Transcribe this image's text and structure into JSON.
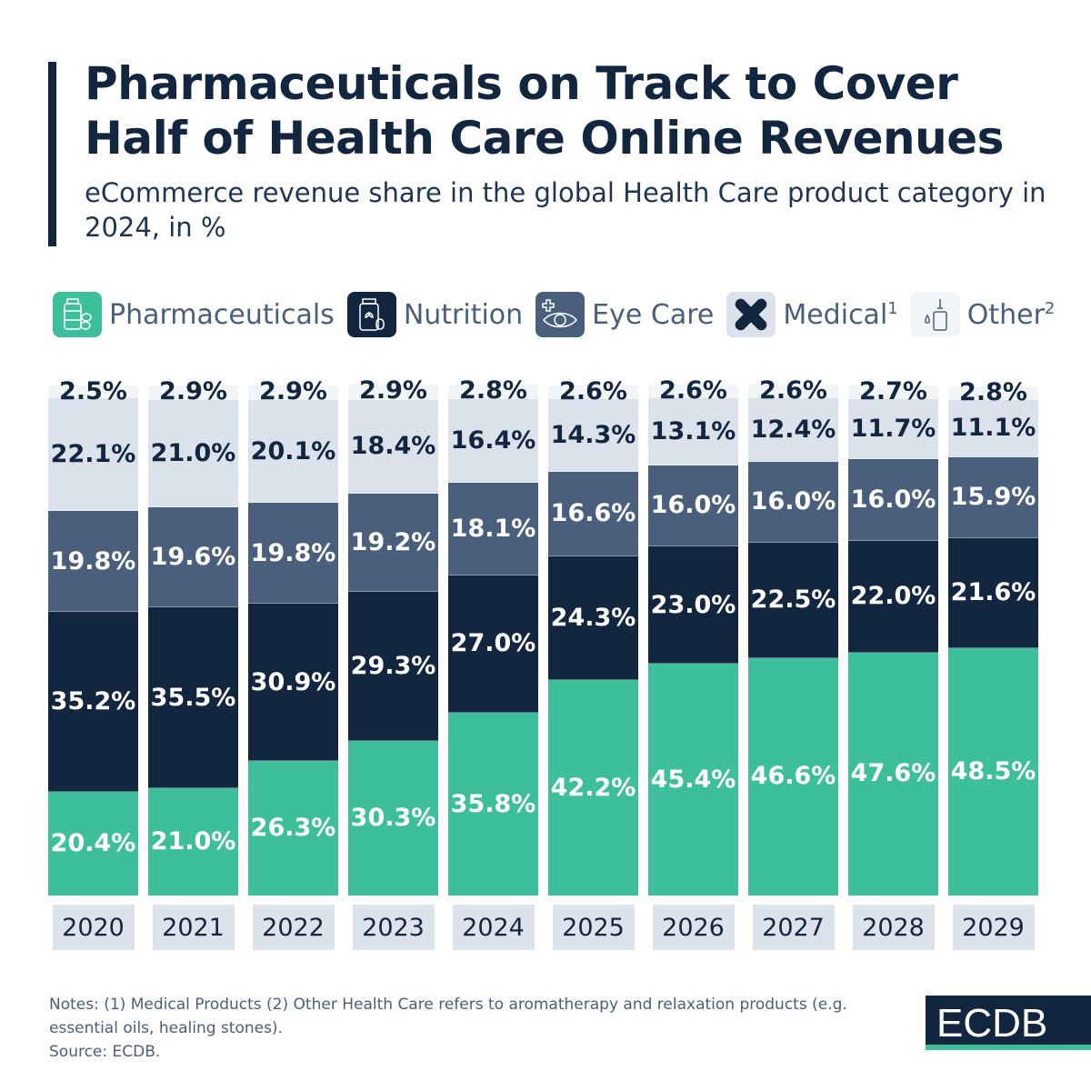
{
  "header": {
    "title": "Pharmaceuticals on Track to Cover Half of Health Care Online Revenues",
    "subtitle": "eCommerce revenue share in the global Health Care product category in 2024, in %"
  },
  "legend": [
    {
      "label": "Pharmaceuticals",
      "sup": "",
      "icon": "pill-bottle-icon",
      "color": "#3dbf9b"
    },
    {
      "label": "Nutrition",
      "sup": "",
      "icon": "supplement-jar-icon",
      "color": "#13263f"
    },
    {
      "label": "Eye Care",
      "sup": "",
      "icon": "eye-icon",
      "color": "#4a5f7c"
    },
    {
      "label": "Medical",
      "sup": "1",
      "icon": "bandage-icon",
      "color": "#dbe2eb"
    },
    {
      "label": "Other",
      "sup": "2",
      "icon": "dropper-bottle-icon",
      "color": "#f2f5f8"
    }
  ],
  "chart_data": {
    "type": "bar",
    "stacked": true,
    "categories": [
      "2020",
      "2021",
      "2022",
      "2023",
      "2024",
      "2025",
      "2026",
      "2027",
      "2028",
      "2029"
    ],
    "series": [
      {
        "name": "Pharmaceuticals",
        "color": "#3dbf9b",
        "text_color": "#ffffff",
        "values": [
          20.4,
          21.0,
          26.3,
          30.3,
          35.8,
          42.2,
          45.4,
          46.6,
          47.6,
          48.5
        ]
      },
      {
        "name": "Nutrition",
        "color": "#13263f",
        "text_color": "#ffffff",
        "values": [
          35.2,
          35.5,
          30.9,
          29.3,
          27.0,
          24.3,
          23.0,
          22.5,
          22.0,
          21.6
        ]
      },
      {
        "name": "Eye Care",
        "color": "#4a5f7c",
        "text_color": "#ffffff",
        "values": [
          19.8,
          19.6,
          19.8,
          19.2,
          18.1,
          16.6,
          16.0,
          16.0,
          16.0,
          15.9
        ]
      },
      {
        "name": "Medical",
        "color": "#dbe2eb",
        "text_color": "#13263f",
        "values": [
          22.1,
          21.0,
          20.1,
          18.4,
          16.4,
          14.3,
          13.1,
          12.4,
          11.7,
          11.1
        ]
      },
      {
        "name": "Other",
        "color": "#f2f5f8",
        "text_color": "#13263f",
        "values": [
          2.5,
          2.9,
          2.9,
          2.9,
          2.8,
          2.6,
          2.6,
          2.6,
          2.7,
          2.8
        ]
      }
    ],
    "value_suffix": "%",
    "ylim": [
      0,
      100
    ]
  },
  "footer": {
    "notes": "Notes: (1) Medical Products (2) Other Health Care refers to aromatherapy and relaxation products (e.g. essential oils, healing stones).",
    "source": "Source: ECDB.",
    "logo": "ECDB"
  }
}
